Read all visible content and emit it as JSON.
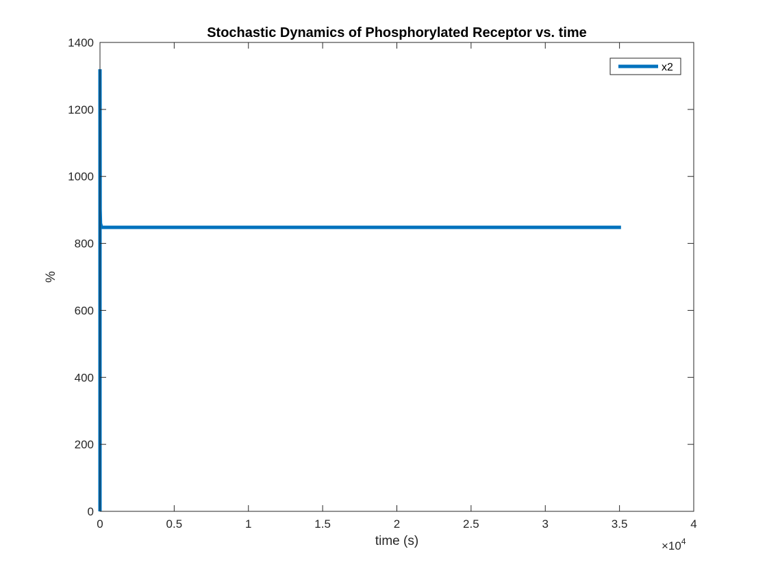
{
  "chart_data": {
    "type": "line",
    "title": "Stochastic Dynamics of Phosphorylated Receptor vs. time",
    "xlabel": "time (s)",
    "ylabel": "%",
    "x_exponent_label": "×10",
    "x_exponent_power": "4",
    "x_multiplier": 10000,
    "xlim": [
      0,
      40000
    ],
    "ylim": [
      0,
      1400
    ],
    "xticks": [
      0,
      5000,
      10000,
      15000,
      20000,
      25000,
      30000,
      35000,
      40000
    ],
    "xtick_labels": [
      "0",
      "0.5",
      "1",
      "1.5",
      "2",
      "2.5",
      "3",
      "3.5",
      "4"
    ],
    "yticks": [
      0,
      200,
      400,
      600,
      800,
      1000,
      1200,
      1400
    ],
    "ytick_labels": [
      "0",
      "200",
      "400",
      "600",
      "800",
      "1000",
      "1200",
      "1400"
    ],
    "grid": false,
    "legend_position": "top-right",
    "series": [
      {
        "name": "x2",
        "color": "#0072BD",
        "x": [
          0,
          0,
          10,
          30,
          100,
          300,
          1000,
          5000,
          10000,
          20000,
          30000,
          35100
        ],
        "y": [
          0,
          1320,
          900,
          860,
          848,
          848,
          848,
          848,
          848,
          848,
          848,
          848
        ]
      }
    ]
  }
}
